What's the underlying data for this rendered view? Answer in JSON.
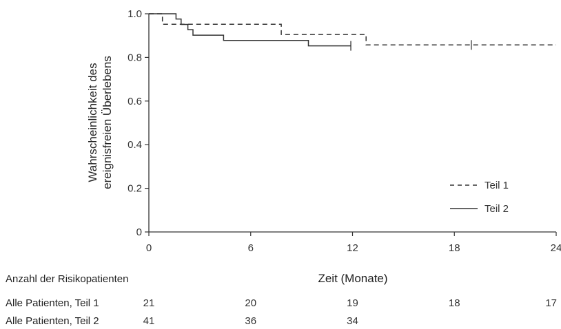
{
  "chart_data": {
    "type": "line",
    "title": "",
    "xlabel": "Zeit (Monate)",
    "ylabel_lines": [
      "Wahrscheinlichkeit des",
      "ereignisfreien Überlebens"
    ],
    "xlim": [
      0,
      24
    ],
    "ylim": [
      0,
      1.0
    ],
    "xticks": [
      0,
      6,
      12,
      18,
      24
    ],
    "xtick_labels": [
      "0",
      "6",
      "12",
      "18",
      "24"
    ],
    "yticks": [
      0,
      0.2,
      0.4,
      0.6,
      0.8,
      1.0
    ],
    "ytick_labels": [
      "0",
      "0.2",
      "0.4",
      "0.6",
      "0.8",
      "1.0"
    ],
    "grid": false,
    "legend_position": "bottom-right",
    "series": [
      {
        "name": "Teil 1",
        "style": "dashed",
        "color": "#333333",
        "x": [
          0,
          0.8,
          0.8,
          7.8,
          7.8,
          12.8,
          12.8,
          24
        ],
        "y": [
          1.0,
          1.0,
          0.952,
          0.952,
          0.905,
          0.905,
          0.857,
          0.857
        ],
        "censor_x": [
          19.0
        ],
        "censor_y": [
          0.857
        ]
      },
      {
        "name": "Teil 2",
        "style": "solid",
        "color": "#333333",
        "x": [
          0,
          1.6,
          1.6,
          1.9,
          1.9,
          2.3,
          2.3,
          2.6,
          2.6,
          2.7,
          2.7,
          4.4,
          4.4,
          9.4,
          9.4,
          11.9
        ],
        "y": [
          1.0,
          1.0,
          0.976,
          0.976,
          0.951,
          0.951,
          0.927,
          0.927,
          0.902,
          0.902,
          0.902,
          0.902,
          0.878,
          0.878,
          0.853,
          0.853
        ],
        "censor_x": [
          11.9
        ],
        "censor_y": [
          0.853
        ]
      }
    ]
  },
  "risk_table": {
    "heading": "Anzahl der Risikopatienten",
    "rows": [
      {
        "label": "Alle Patienten, Teil 1",
        "values": [
          "21",
          "20",
          "19",
          "18",
          "17"
        ]
      },
      {
        "label": "Alle Patienten, Teil 2",
        "values": [
          "41",
          "36",
          "34",
          "",
          ""
        ]
      }
    ]
  }
}
